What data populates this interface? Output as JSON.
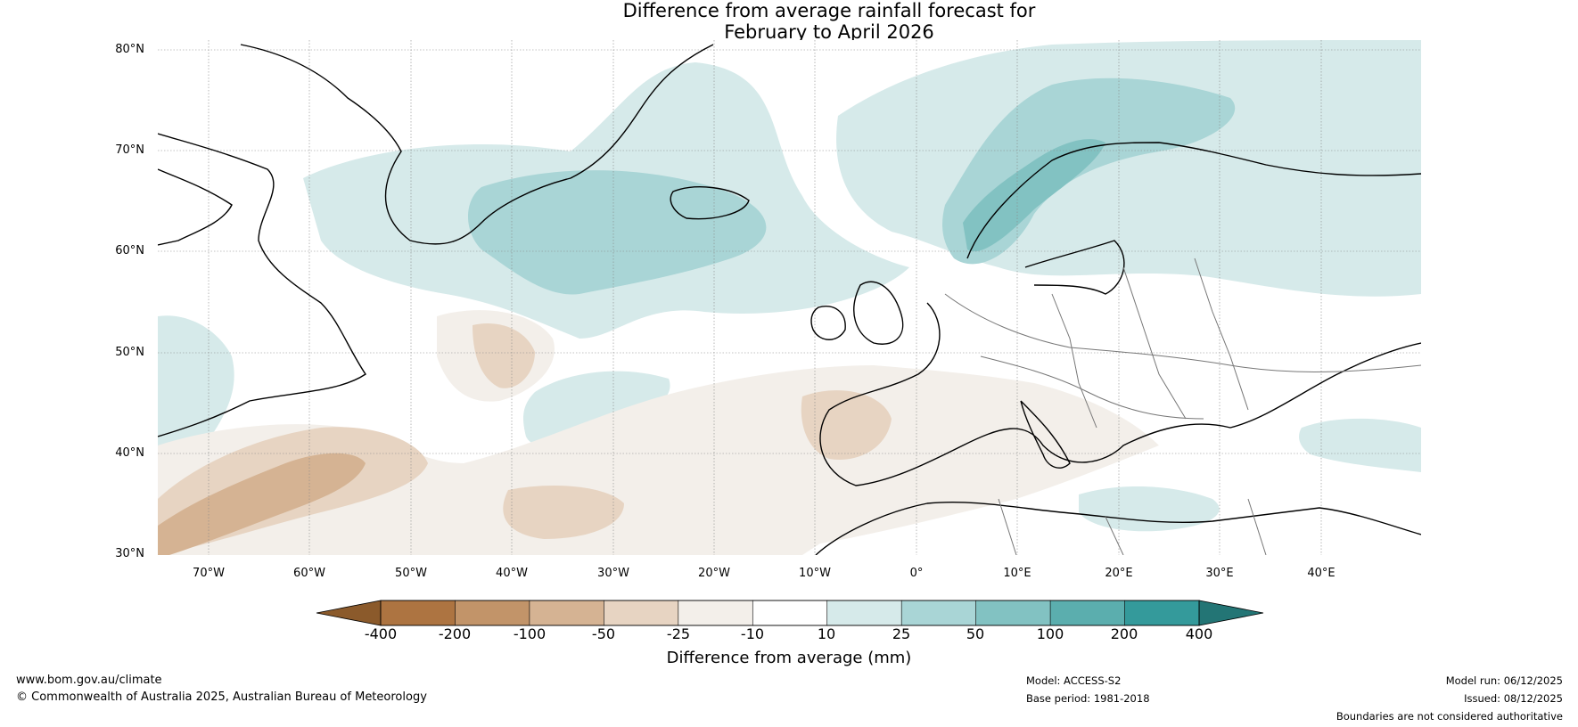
{
  "title": {
    "line1": "Difference from average rainfall forecast for",
    "line2": "February to April 2026"
  },
  "map": {
    "lat_labels": [
      "80°N",
      "70°N",
      "60°N",
      "50°N",
      "40°N",
      "30°N"
    ],
    "lon_labels": [
      "70°W",
      "60°W",
      "50°W",
      "40°W",
      "30°W",
      "20°W",
      "10°W",
      "0°",
      "10°E",
      "20°E",
      "30°E",
      "40°E"
    ]
  },
  "colorbar": {
    "label": "Difference from average (mm)",
    "ticks": [
      "-400",
      "-200",
      "-100",
      "-50",
      "-25",
      "-10",
      "10",
      "25",
      "50",
      "100",
      "200",
      "400"
    ],
    "colors": [
      "#8b5a2b",
      "#ad7441",
      "#c29469",
      "#d5b393",
      "#e7d4c2",
      "#f3efea",
      "#ffffff",
      "#d6eaea",
      "#a9d5d6",
      "#82c2c2",
      "#5baeae",
      "#349a9b",
      "#237575"
    ]
  },
  "footer": {
    "website": "www.bom.gov.au/climate",
    "copyright": "© Commonwealth of Australia 2025, Australian Bureau of Meteorology",
    "model": "Model: ACCESS-S2",
    "base_period": "Base period: 1981-2018",
    "model_run": "Model run: 06/12/2025",
    "issued": "Issued: 08/12/2025",
    "disclaimer": "Boundaries are not considered authoritative"
  }
}
